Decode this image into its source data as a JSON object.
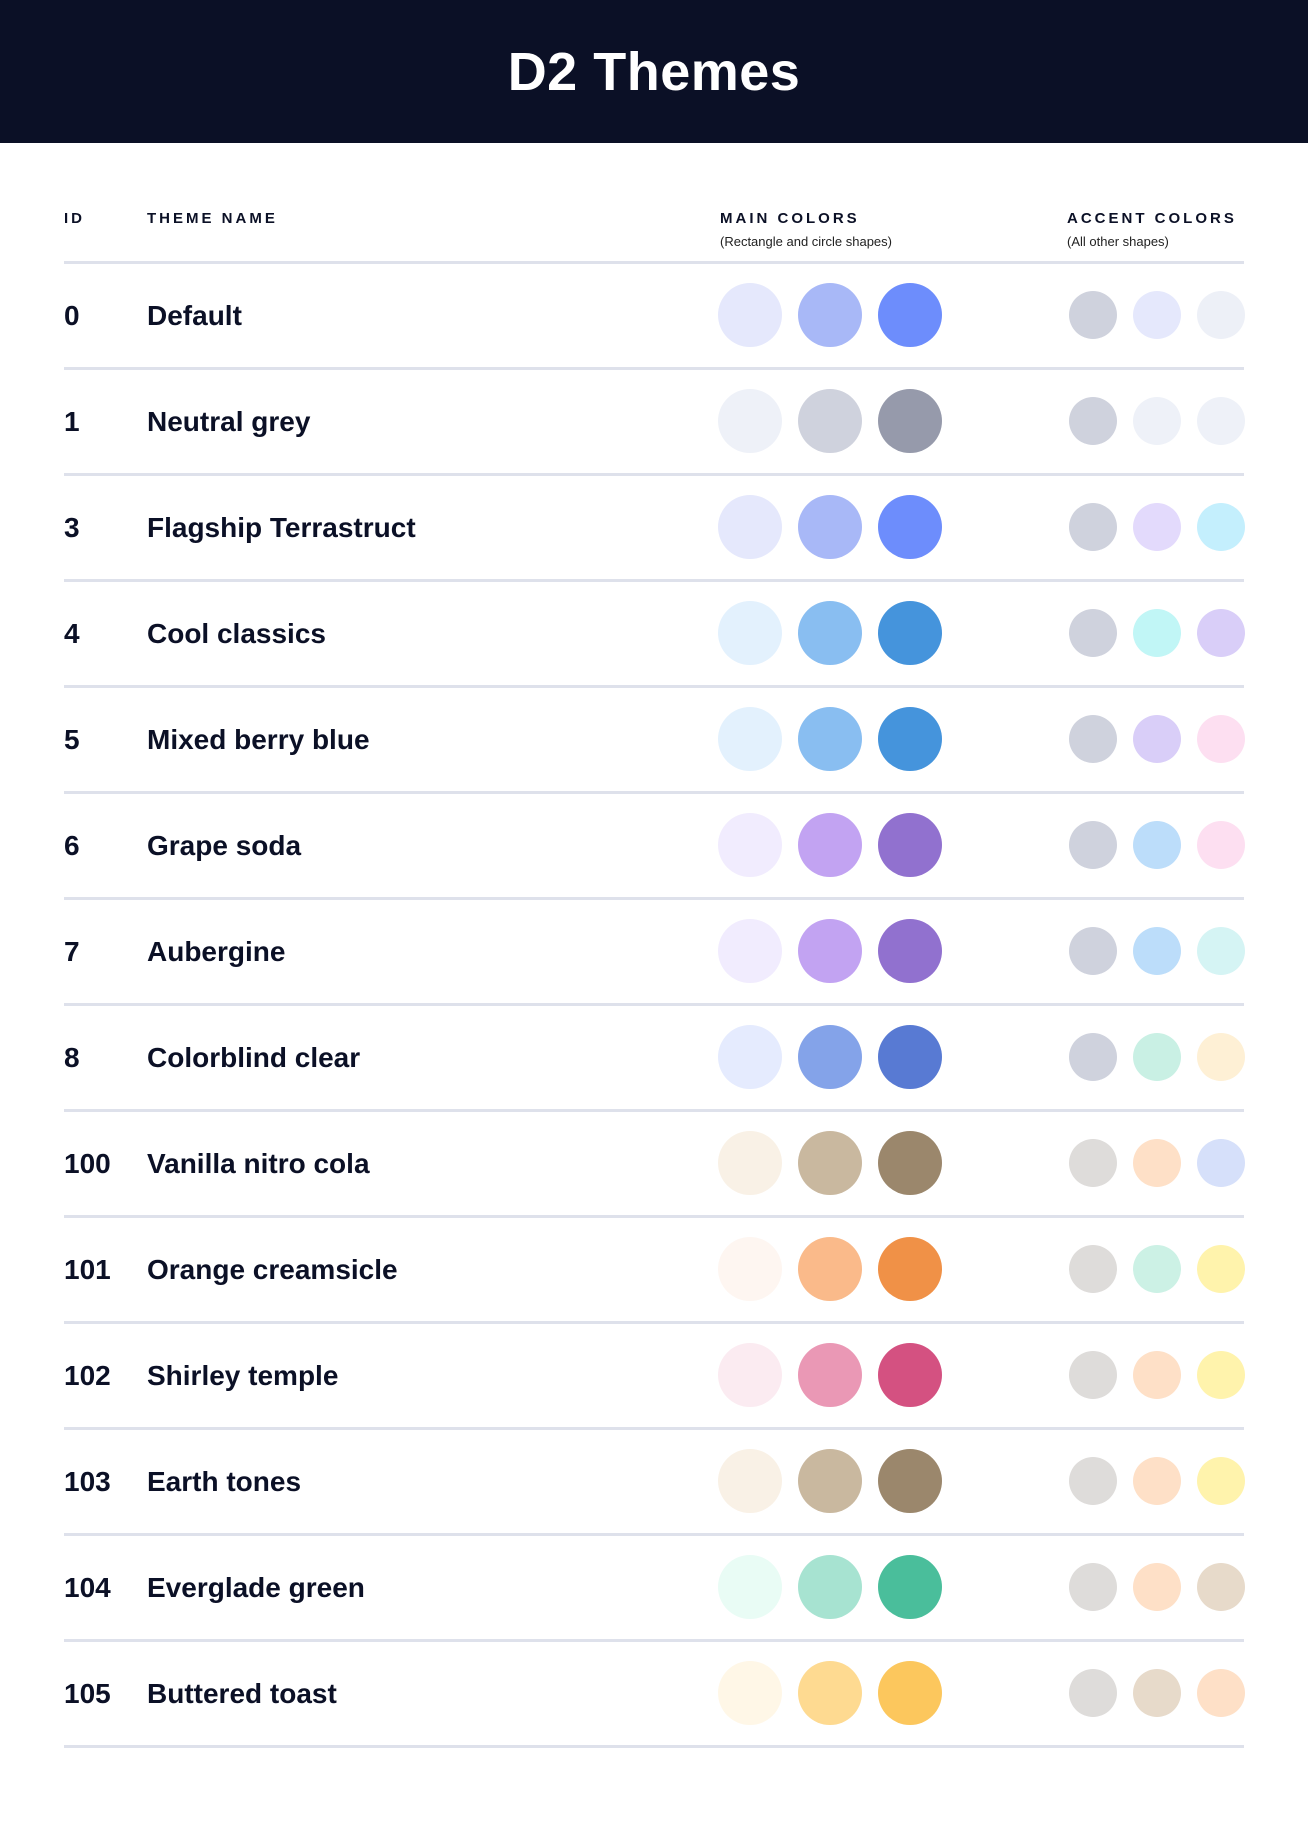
{
  "header": {
    "title": "D2 Themes"
  },
  "columns": {
    "id": "ID",
    "name": "THEME NAME",
    "main": "MAIN COLORS",
    "main_sub": "(Rectangle and circle shapes)",
    "accent": "ACCENT COLORS",
    "accent_sub": "(All other shapes)"
  },
  "themes": [
    {
      "id": "0",
      "name": "Default",
      "main": [
        "#E5E8FC",
        "#A8B8F7",
        "#6D8DFC"
      ],
      "accent": [
        "#CFD2DD",
        "#E5E8FC",
        "#EDF0F7"
      ]
    },
    {
      "id": "1",
      "name": "Neutral grey",
      "main": [
        "#EEF1F8",
        "#CFD2DD",
        "#969AAB"
      ],
      "accent": [
        "#CFD2DD",
        "#EEF1F8",
        "#EEF1F8"
      ]
    },
    {
      "id": "3",
      "name": "Flagship Terrastruct",
      "main": [
        "#E5E8FC",
        "#A8B8F7",
        "#6D8DFC"
      ],
      "accent": [
        "#CFD2DD",
        "#E3DAFC",
        "#C4EFFD"
      ]
    },
    {
      "id": "4",
      "name": "Cool classics",
      "main": [
        "#E3F1FD",
        "#89BEF1",
        "#4594DC"
      ],
      "accent": [
        "#CFD2DD",
        "#C1F6F6",
        "#D9CEF8"
      ]
    },
    {
      "id": "5",
      "name": "Mixed berry blue",
      "main": [
        "#E3F1FD",
        "#89BEF1",
        "#4594DC"
      ],
      "accent": [
        "#CFD2DD",
        "#D9CEF8",
        "#FDDFF1"
      ]
    },
    {
      "id": "6",
      "name": "Grape soda",
      "main": [
        "#F1ECFE",
        "#C2A3F2",
        "#9171CF"
      ],
      "accent": [
        "#CFD2DD",
        "#BCDDFA",
        "#FDDFF1"
      ]
    },
    {
      "id": "7",
      "name": "Aubergine",
      "main": [
        "#F1ECFE",
        "#C2A3F2",
        "#9171CF"
      ],
      "accent": [
        "#CFD2DD",
        "#BCDDFA",
        "#D5F4F4"
      ]
    },
    {
      "id": "8",
      "name": "Colorblind clear",
      "main": [
        "#E5EBFE",
        "#84A3E9",
        "#587AD3"
      ],
      "accent": [
        "#CFD2DD",
        "#C9F0E4",
        "#FEF0D5"
      ]
    },
    {
      "id": "100",
      "name": "Vanilla nitro cola",
      "main": [
        "#F9F1E6",
        "#C9B89F",
        "#9B876C"
      ],
      "accent": [
        "#DEDCDA",
        "#FEE0C7",
        "#D6E0FA"
      ]
    },
    {
      "id": "101",
      "name": "Orange creamsicle",
      "main": [
        "#FEF6F1",
        "#FABA8A",
        "#F09147"
      ],
      "accent": [
        "#DEDCDA",
        "#CCF1E5",
        "#FFF3AC"
      ]
    },
    {
      "id": "102",
      "name": "Shirley temple",
      "main": [
        "#FBEBF1",
        "#EA98B5",
        "#D45181"
      ],
      "accent": [
        "#DEDCDA",
        "#FEE0C7",
        "#FFF3AC"
      ]
    },
    {
      "id": "103",
      "name": "Earth tones",
      "main": [
        "#F9F1E6",
        "#C9B89F",
        "#9B876C"
      ],
      "accent": [
        "#DEDCDA",
        "#FEE0C7",
        "#FFF3AC"
      ]
    },
    {
      "id": "104",
      "name": "Everglade green",
      "main": [
        "#E9FCF5",
        "#A7E3D1",
        "#4ABE9B"
      ],
      "accent": [
        "#DEDCDA",
        "#FEE0C7",
        "#E7DACA"
      ]
    },
    {
      "id": "105",
      "name": "Buttered toast",
      "main": [
        "#FFF7E7",
        "#FEDA91",
        "#FCC75D"
      ],
      "accent": [
        "#DEDCDA",
        "#E7DACA",
        "#FEE0C7"
      ]
    }
  ]
}
